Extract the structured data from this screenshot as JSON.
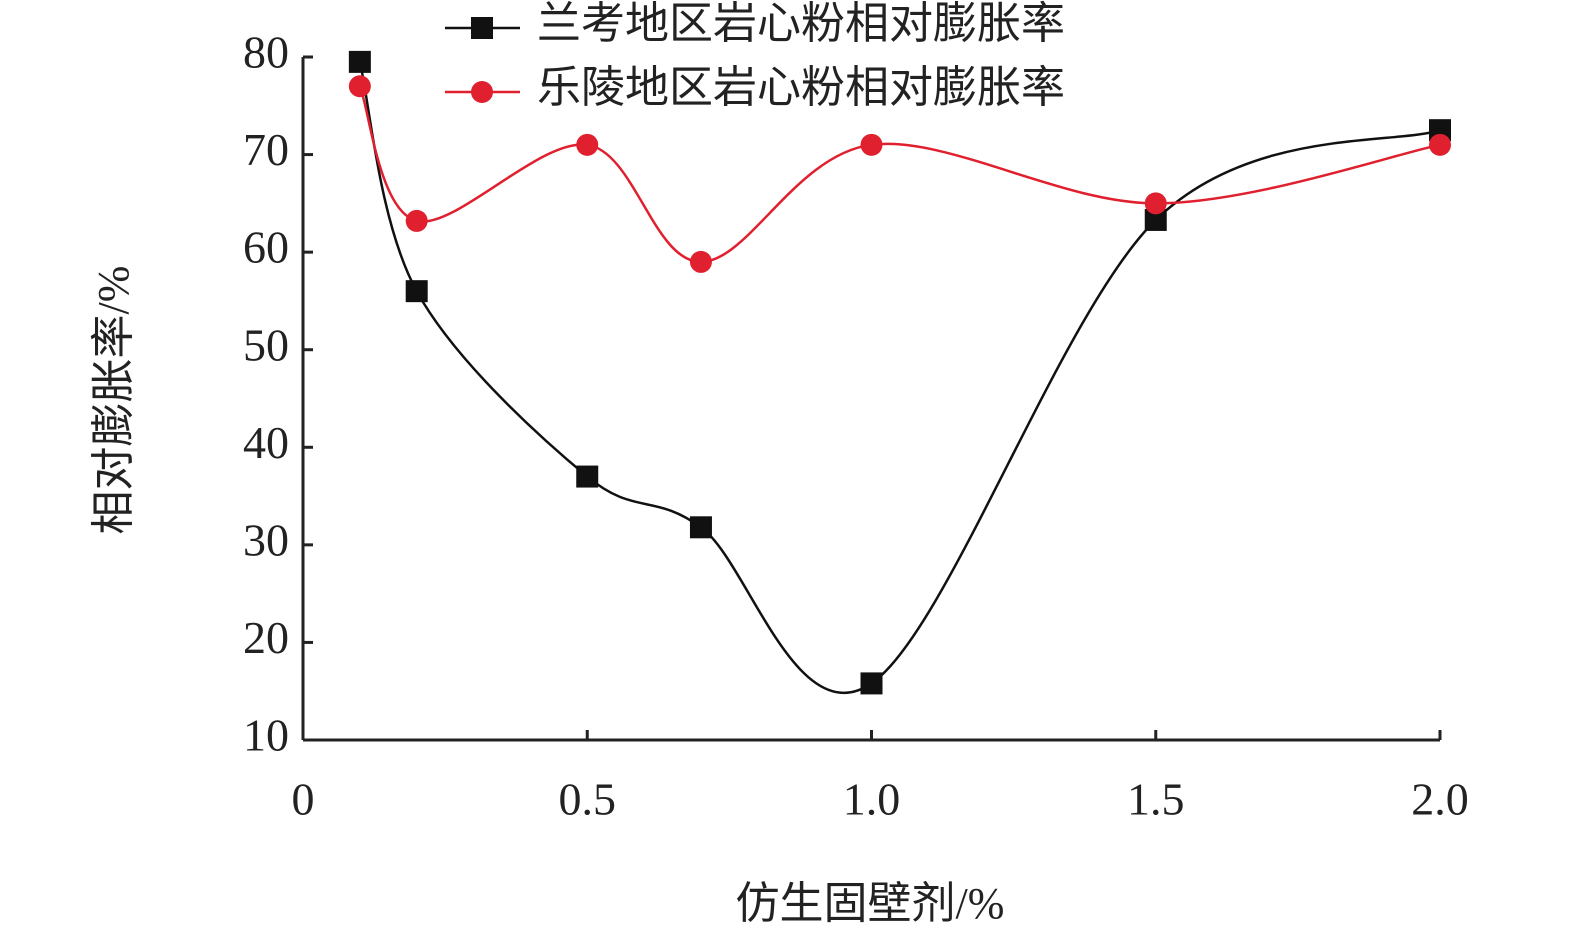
{
  "chart_data": {
    "type": "line",
    "x_label": "仿生固壁剂/%",
    "y_label": "相对膨胀率/%",
    "x": [
      0.1,
      0.2,
      0.5,
      0.7,
      1.0,
      1.5,
      2.0
    ],
    "series": [
      {
        "name": "兰考地区岩心粉相对膨胀率",
        "color": "#111111",
        "marker": "square",
        "values": [
          79.5,
          56,
          37,
          31.8,
          15.8,
          63.3,
          72.5
        ]
      },
      {
        "name": "乐陵地区岩心粉相对膨胀率",
        "color": "#e0202e",
        "marker": "circle",
        "values": [
          77,
          63.2,
          71,
          59,
          71,
          65,
          71
        ]
      }
    ],
    "xlim": [
      0,
      2
    ],
    "xticks": [
      0,
      0.5,
      {
        "value": 1,
        "label": "1.0"
      },
      1.5,
      {
        "value": 2,
        "label": "2.0"
      }
    ],
    "ylim": [
      10,
      80
    ],
    "yticks": [
      10,
      20,
      30,
      40,
      50,
      60,
      70,
      80
    ],
    "smooth": true,
    "legend": "upper center"
  }
}
